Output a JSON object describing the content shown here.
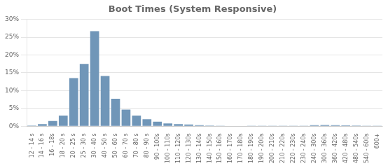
{
  "chart_data": {
    "type": "bar",
    "title": "Boot Times (System Responsive)",
    "categories": [
      "12 - 14 s",
      "14 - 16 s",
      "16 - 18s",
      "18 - 20 s",
      "20 - 25 s",
      "25 - 30 s",
      "30 - 40 s",
      "40 - 50 s",
      "50 - 60 s",
      "60 - 70 s",
      "70 - 80 s",
      "80 - 90 s",
      "90 - 100s",
      "100 - 110s",
      "110 - 120s",
      "120 - 130s",
      "130 - 140s",
      "140 - 150s",
      "150 - 160s",
      "160 - 170s",
      "170 - 180s",
      "180 - 190s",
      "190 - 200s",
      "200 - 210s",
      "210 - 220s",
      "220 - 230s",
      "230 - 240s",
      "240 - 300s",
      "300 - 360s",
      "360 - 420s",
      "420 - 480s",
      "480 - 540s",
      "540 - 600s",
      "600+"
    ],
    "values": [
      0.2,
      0.6,
      1.5,
      3.0,
      13.5,
      17.5,
      26.7,
      14.1,
      7.7,
      4.7,
      3.0,
      2.0,
      1.3,
      0.8,
      0.6,
      0.5,
      0.3,
      0.2,
      0.15,
      0.1,
      0.1,
      0.08,
      0.07,
      0.06,
      0.05,
      0.05,
      0.04,
      0.3,
      0.35,
      0.3,
      0.25,
      0.2,
      0.15,
      0.15
    ],
    "color": "#7096b8",
    "ylim": [
      0,
      30
    ],
    "yticks": [
      {
        "value": 0,
        "label": "0%"
      },
      {
        "value": 5,
        "label": "5%"
      },
      {
        "value": 10,
        "label": "10%"
      },
      {
        "value": 15,
        "label": "15%"
      },
      {
        "value": 20,
        "label": "20%"
      },
      {
        "value": 25,
        "label": "25%"
      },
      {
        "value": 30,
        "label": "30%"
      }
    ],
    "grid": true
  }
}
